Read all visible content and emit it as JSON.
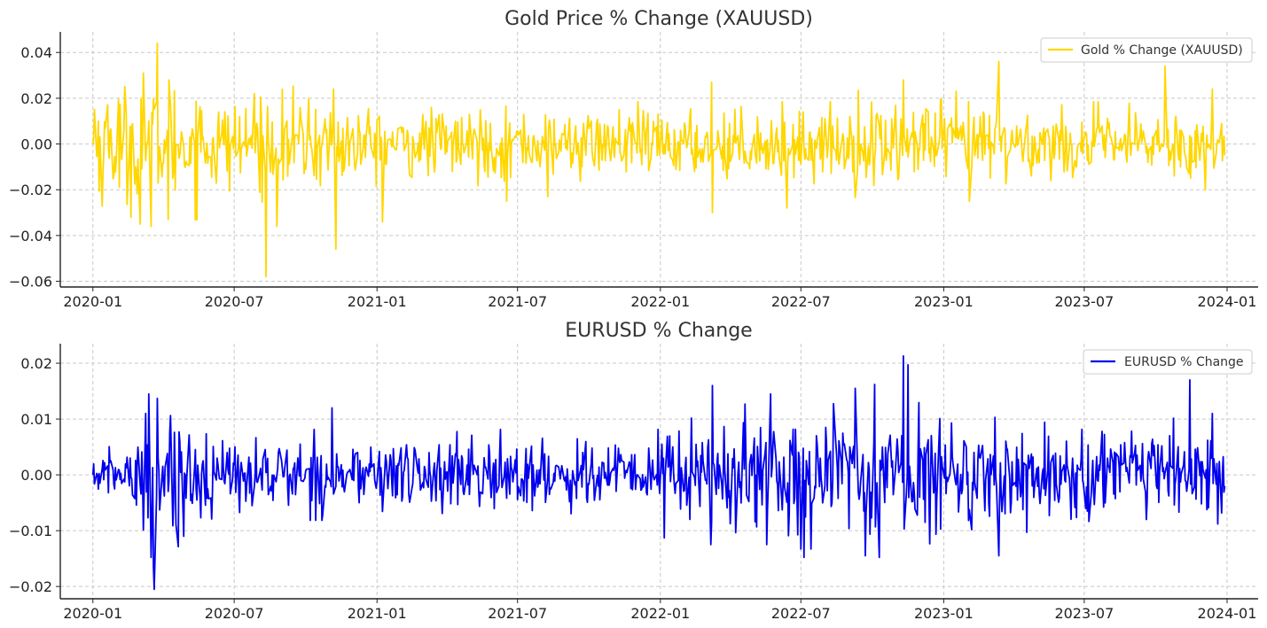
{
  "chart_data": [
    {
      "type": "line",
      "title": "Gold Price % Change (XAUUSD)",
      "xlabel": "",
      "ylabel": "",
      "x_range": [
        "2019-11-20",
        "2024-02-10"
      ],
      "x_ticks": [
        "2020-01",
        "2020-07",
        "2021-01",
        "2021-07",
        "2022-01",
        "2022-07",
        "2023-01",
        "2023-07",
        "2024-01"
      ],
      "ylim": [
        -0.0625,
        0.049
      ],
      "y_ticks": [
        0.04,
        0.02,
        0.0,
        -0.02,
        -0.04,
        -0.06
      ],
      "y_tick_labels": [
        "0.04",
        "0.02",
        "0.00",
        "−0.02",
        "−0.04",
        "−0.06"
      ],
      "grid": true,
      "legend": "top-right",
      "series": [
        {
          "name": "Gold % Change (XAUUSD)",
          "color": "#FFD700",
          "x_start": "2020-01-01",
          "x_end": "2023-12-29",
          "notable_points": [
            {
              "date": "2020-01-01",
              "value": 0.0
            },
            {
              "date": "2020-01-03",
              "value": 0.015
            },
            {
              "date": "2020-01-14",
              "value": -0.012
            },
            {
              "date": "2020-03-02",
              "value": -0.035
            },
            {
              "date": "2020-03-06",
              "value": 0.031
            },
            {
              "date": "2020-03-16",
              "value": -0.036
            },
            {
              "date": "2020-03-24",
              "value": 0.044
            },
            {
              "date": "2020-04-07",
              "value": -0.033
            },
            {
              "date": "2020-04-08",
              "value": 0.028
            },
            {
              "date": "2020-07-27",
              "value": 0.022
            },
            {
              "date": "2020-08-11",
              "value": -0.058
            },
            {
              "date": "2020-08-25",
              "value": -0.036
            },
            {
              "date": "2020-11-06",
              "value": 0.024
            },
            {
              "date": "2020-11-09",
              "value": -0.046
            },
            {
              "date": "2021-01-08",
              "value": -0.034
            },
            {
              "date": "2021-06-17",
              "value": -0.025
            },
            {
              "date": "2021-08-09",
              "value": -0.023
            },
            {
              "date": "2022-03-08",
              "value": 0.027
            },
            {
              "date": "2022-03-09",
              "value": -0.03
            },
            {
              "date": "2022-06-13",
              "value": -0.028
            },
            {
              "date": "2022-11-10",
              "value": 0.028
            },
            {
              "date": "2023-02-03",
              "value": -0.025
            },
            {
              "date": "2023-03-13",
              "value": 0.036
            },
            {
              "date": "2023-10-13",
              "value": 0.034
            },
            {
              "date": "2023-12-04",
              "value": -0.02
            },
            {
              "date": "2023-12-13",
              "value": 0.024
            },
            {
              "date": "2023-12-29",
              "value": -0.005
            }
          ],
          "typical_amplitude": 0.0075,
          "volatility_profile": [
            {
              "from": "2020-01-01",
              "to": "2020-05-31",
              "scale": 1.7
            },
            {
              "from": "2020-06-01",
              "to": "2020-11-30",
              "scale": 1.3
            },
            {
              "from": "2020-12-01",
              "to": "2022-08-31",
              "scale": 0.95
            },
            {
              "from": "2022-09-01",
              "to": "2023-03-31",
              "scale": 1.2
            },
            {
              "from": "2023-04-01",
              "to": "2023-12-29",
              "scale": 0.95
            }
          ]
        }
      ]
    },
    {
      "type": "line",
      "title": "EURUSD % Change",
      "xlabel": "",
      "ylabel": "",
      "x_range": [
        "2019-11-20",
        "2024-02-10"
      ],
      "x_ticks": [
        "2020-01",
        "2020-07",
        "2021-01",
        "2021-07",
        "2022-01",
        "2022-07",
        "2023-01",
        "2023-07",
        "2024-01"
      ],
      "ylim": [
        -0.0222,
        0.0235
      ],
      "y_ticks": [
        0.02,
        0.01,
        0.0,
        -0.01,
        -0.02
      ],
      "y_tick_labels": [
        "0.02",
        "0.01",
        "0.00",
        "−0.01",
        "−0.02"
      ],
      "grid": true,
      "legend": "top-right",
      "series": [
        {
          "name": "EURUSD % Change",
          "color": "#0000EE",
          "x_start": "2020-01-01",
          "x_end": "2023-12-29",
          "notable_points": [
            {
              "date": "2020-01-01",
              "value": 0.0
            },
            {
              "date": "2020-03-09",
              "value": 0.011
            },
            {
              "date": "2020-03-13",
              "value": 0.0145
            },
            {
              "date": "2020-03-16",
              "value": -0.0148
            },
            {
              "date": "2020-03-19",
              "value": -0.0165
            },
            {
              "date": "2020-03-20",
              "value": -0.0205
            },
            {
              "date": "2020-03-24",
              "value": 0.0137
            },
            {
              "date": "2020-11-04",
              "value": 0.012
            },
            {
              "date": "2022-03-07",
              "value": -0.0125
            },
            {
              "date": "2022-03-09",
              "value": 0.016
            },
            {
              "date": "2022-05-18",
              "value": -0.0125
            },
            {
              "date": "2022-05-23",
              "value": 0.0145
            },
            {
              "date": "2022-07-05",
              "value": -0.0148
            },
            {
              "date": "2022-09-09",
              "value": 0.0155
            },
            {
              "date": "2022-09-22",
              "value": -0.0145
            },
            {
              "date": "2022-10-04",
              "value": 0.0162
            },
            {
              "date": "2022-10-10",
              "value": -0.0148
            },
            {
              "date": "2022-11-10",
              "value": 0.0213
            },
            {
              "date": "2022-11-16",
              "value": 0.0197
            },
            {
              "date": "2023-03-13",
              "value": -0.0145
            },
            {
              "date": "2023-11-14",
              "value": 0.017
            },
            {
              "date": "2023-12-13",
              "value": 0.011
            },
            {
              "date": "2023-12-20",
              "value": -0.0088
            },
            {
              "date": "2023-12-29",
              "value": -0.002
            }
          ],
          "typical_amplitude": 0.0033,
          "volatility_profile": [
            {
              "from": "2020-01-01",
              "to": "2020-02-20",
              "scale": 0.6
            },
            {
              "from": "2020-02-21",
              "to": "2020-05-31",
              "scale": 1.5
            },
            {
              "from": "2020-06-01",
              "to": "2021-12-31",
              "scale": 0.95
            },
            {
              "from": "2022-01-01",
              "to": "2022-12-31",
              "scale": 1.55
            },
            {
              "from": "2023-01-01",
              "to": "2023-12-29",
              "scale": 1.2
            }
          ]
        }
      ]
    }
  ]
}
